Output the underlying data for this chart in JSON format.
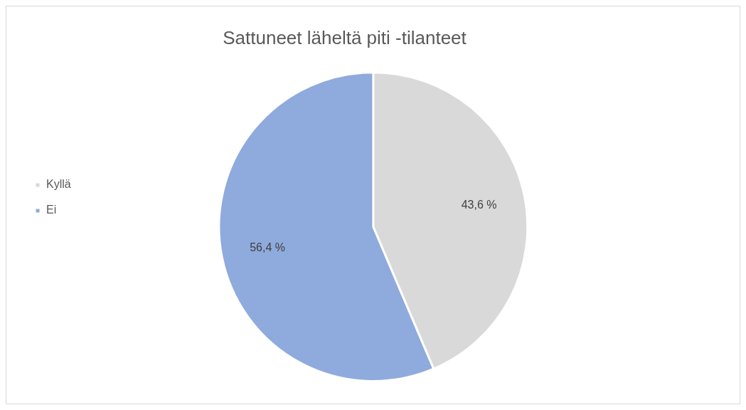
{
  "chart_data": {
    "type": "pie",
    "title": "Sattuneet läheltä piti -tilanteet",
    "categories": [
      "Kyllä",
      "Ei"
    ],
    "values": [
      43.6,
      56.4
    ],
    "colors": [
      "#d9d9d9",
      "#8faadc"
    ],
    "value_labels": [
      "43,6 %",
      "56,4 %"
    ],
    "legend": "left"
  }
}
